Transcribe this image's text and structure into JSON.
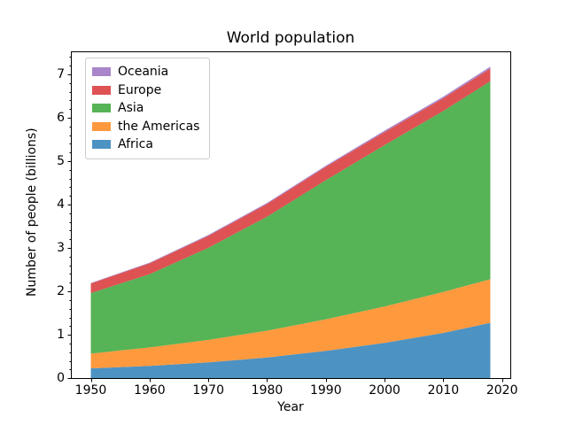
{
  "figure": {
    "background": "#ffffff",
    "axis_color": "#000000",
    "text_color": "#000000",
    "legend_border_color": "#cccccc"
  },
  "chart_data": {
    "type": "area",
    "stacked": true,
    "title": "World population",
    "xlabel": "Year",
    "ylabel": "Number of people (billions)",
    "x": [
      1950,
      1960,
      1970,
      1980,
      1990,
      2000,
      2010,
      2018
    ],
    "series": [
      {
        "name": "Africa",
        "color": "#4C92C3",
        "values": [
          0.228,
          0.284,
          0.365,
          0.477,
          0.631,
          0.814,
          1.044,
          1.275
        ]
      },
      {
        "name": "the Americas",
        "color": "#FF993E",
        "values": [
          0.34,
          0.425,
          0.519,
          0.619,
          0.727,
          0.84,
          0.943,
          1.006
        ]
      },
      {
        "name": "Asia",
        "color": "#56B356",
        "values": [
          1.394,
          1.686,
          2.12,
          2.625,
          3.202,
          3.714,
          4.169,
          4.56
        ]
      },
      {
        "name": "Europe",
        "color": "#DE5253",
        "values": [
          0.22,
          0.253,
          0.276,
          0.295,
          0.31,
          0.303,
          0.294,
          0.293
        ]
      },
      {
        "name": "Oceania",
        "color": "#A985CA",
        "values": [
          0.012,
          0.015,
          0.019,
          0.022,
          0.026,
          0.031,
          0.036,
          0.043
        ]
      }
    ],
    "xlim": [
      1946.6,
      2021.4
    ],
    "ylim": [
      0,
      7.536
    ],
    "x_ticks": [
      1950,
      1960,
      1970,
      1980,
      1990,
      2000,
      2010,
      2020
    ],
    "y_ticks": [
      0,
      1,
      2,
      3,
      4,
      5,
      6,
      7
    ],
    "y_minor_step": 0.2,
    "grid": false,
    "legend_position": "upper left"
  },
  "legend": {
    "items": [
      {
        "label": "Oceania",
        "color": "#A985CA"
      },
      {
        "label": "Europe",
        "color": "#DE5253"
      },
      {
        "label": "Asia",
        "color": "#56B356"
      },
      {
        "label": "the Americas",
        "color": "#FF993E"
      },
      {
        "label": "Africa",
        "color": "#4C92C3"
      }
    ]
  }
}
